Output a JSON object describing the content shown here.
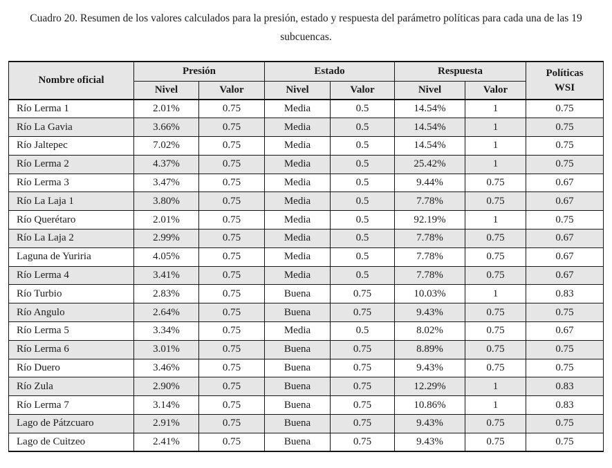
{
  "caption": "Cuadro 20. Resumen de los valores calculados para la presión, estado y respuesta del parámetro políticas para cada una de las 19 subcuencas.",
  "colors": {
    "header_bg": "#e6e6e6",
    "row_alt_bg": "#e6e6e6",
    "border": "#141414",
    "text": "#1a1a1a"
  },
  "table": {
    "headers": {
      "name": "Nombre oficial",
      "groups": [
        "Presión",
        "Estado",
        "Respuesta"
      ],
      "wsi": "Políticas\nWSI",
      "sub": [
        "Nivel",
        "Valor",
        "Nivel",
        "Valor",
        "Nivel",
        "Valor"
      ]
    },
    "rows": [
      {
        "name": "Río Lerma 1",
        "p_nivel": "2.01%",
        "p_valor": "0.75",
        "e_nivel": "Media",
        "e_valor": "0.5",
        "r_nivel": "14.54%",
        "r_valor": "1",
        "wsi": "0.75"
      },
      {
        "name": "Río La Gavia",
        "p_nivel": "3.66%",
        "p_valor": "0.75",
        "e_nivel": "Media",
        "e_valor": "0.5",
        "r_nivel": "14.54%",
        "r_valor": "1",
        "wsi": "0.75"
      },
      {
        "name": "Río Jaltepec",
        "p_nivel": "7.02%",
        "p_valor": "0.75",
        "e_nivel": "Media",
        "e_valor": "0.5",
        "r_nivel": "14.54%",
        "r_valor": "1",
        "wsi": "0.75"
      },
      {
        "name": "Río Lerma 2",
        "p_nivel": "4.37%",
        "p_valor": "0.75",
        "e_nivel": "Media",
        "e_valor": "0.5",
        "r_nivel": "25.42%",
        "r_valor": "1",
        "wsi": "0.75"
      },
      {
        "name": "Río Lerma 3",
        "p_nivel": "3.47%",
        "p_valor": "0.75",
        "e_nivel": "Media",
        "e_valor": "0.5",
        "r_nivel": "9.44%",
        "r_valor": "0.75",
        "wsi": "0.67"
      },
      {
        "name": "Río La Laja 1",
        "p_nivel": "3.80%",
        "p_valor": "0.75",
        "e_nivel": "Media",
        "e_valor": "0.5",
        "r_nivel": "7.78%",
        "r_valor": "0.75",
        "wsi": "0.67"
      },
      {
        "name": "Río Querétaro",
        "p_nivel": "2.01%",
        "p_valor": "0.75",
        "e_nivel": "Media",
        "e_valor": "0.5",
        "r_nivel": "92.19%",
        "r_valor": "1",
        "wsi": "0.75"
      },
      {
        "name": "Río La Laja 2",
        "p_nivel": "2.99%",
        "p_valor": "0.75",
        "e_nivel": "Media",
        "e_valor": "0.5",
        "r_nivel": "7.78%",
        "r_valor": "0.75",
        "wsi": "0.67"
      },
      {
        "name": "Laguna de Yuriria",
        "p_nivel": "4.05%",
        "p_valor": "0.75",
        "e_nivel": "Media",
        "e_valor": "0.5",
        "r_nivel": "7.78%",
        "r_valor": "0.75",
        "wsi": "0.67"
      },
      {
        "name": "Río Lerma 4",
        "p_nivel": "3.41%",
        "p_valor": "0.75",
        "e_nivel": "Media",
        "e_valor": "0.5",
        "r_nivel": "7.78%",
        "r_valor": "0.75",
        "wsi": "0.67"
      },
      {
        "name": "Río Turbio",
        "p_nivel": "2.83%",
        "p_valor": "0.75",
        "e_nivel": "Buena",
        "e_valor": "0.75",
        "r_nivel": "10.03%",
        "r_valor": "1",
        "wsi": "0.83"
      },
      {
        "name": "Río Angulo",
        "p_nivel": "2.64%",
        "p_valor": "0.75",
        "e_nivel": "Buena",
        "e_valor": "0.75",
        "r_nivel": "9.43%",
        "r_valor": "0.75",
        "wsi": "0.75"
      },
      {
        "name": "Río Lerma 5",
        "p_nivel": "3.34%",
        "p_valor": "0.75",
        "e_nivel": "Media",
        "e_valor": "0.5",
        "r_nivel": "8.02%",
        "r_valor": "0.75",
        "wsi": "0.67"
      },
      {
        "name": "Río Lerma 6",
        "p_nivel": "3.01%",
        "p_valor": "0.75",
        "e_nivel": "Buena",
        "e_valor": "0.75",
        "r_nivel": "8.89%",
        "r_valor": "0.75",
        "wsi": "0.75"
      },
      {
        "name": "Río Duero",
        "p_nivel": "3.46%",
        "p_valor": "0.75",
        "e_nivel": "Buena",
        "e_valor": "0.75",
        "r_nivel": "9.43%",
        "r_valor": "0.75",
        "wsi": "0.75"
      },
      {
        "name": "Río Zula",
        "p_nivel": "2.90%",
        "p_valor": "0.75",
        "e_nivel": "Buena",
        "e_valor": "0.75",
        "r_nivel": "12.29%",
        "r_valor": "1",
        "wsi": "0.83"
      },
      {
        "name": "Río Lerma 7",
        "p_nivel": "3.14%",
        "p_valor": "0.75",
        "e_nivel": "Buena",
        "e_valor": "0.75",
        "r_nivel": "10.86%",
        "r_valor": "1",
        "wsi": "0.83"
      },
      {
        "name": "Lago de Pátzcuaro",
        "p_nivel": "2.91%",
        "p_valor": "0.75",
        "e_nivel": "Buena",
        "e_valor": "0.75",
        "r_nivel": "9.43%",
        "r_valor": "0.75",
        "wsi": "0.75"
      },
      {
        "name": "Lago de Cuitzeo",
        "p_nivel": "2.41%",
        "p_valor": "0.75",
        "e_nivel": "Buena",
        "e_valor": "0.75",
        "r_nivel": "9.43%",
        "r_valor": "0.75",
        "wsi": "0.75"
      }
    ]
  }
}
